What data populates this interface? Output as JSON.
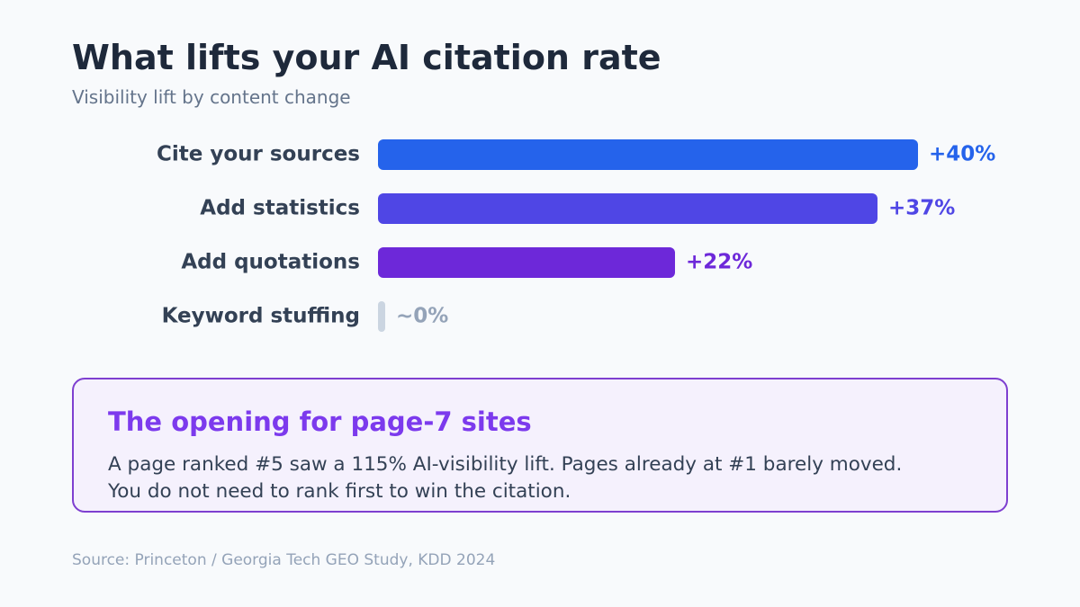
{
  "title": "What lifts your AI citation rate",
  "subtitle": "Visibility lift by content change",
  "chart_data": {
    "type": "bar",
    "orientation": "horizontal",
    "title": "What lifts your AI citation rate",
    "subtitle": "Visibility lift by content change",
    "categories": [
      "Cite your sources",
      "Add statistics",
      "Add quotations",
      "Keyword stuffing"
    ],
    "values": [
      40,
      37,
      22,
      0
    ],
    "value_labels": [
      "+40%",
      "+37%",
      "+22%",
      "~0%"
    ],
    "colors": [
      "#2563eb",
      "#4f46e5",
      "#6d28d9",
      "#cbd5e1"
    ],
    "label_colors": [
      "#2563eb",
      "#4f46e5",
      "#6d28d9",
      "#94a3b8"
    ],
    "xlim": [
      0,
      40
    ],
    "grid": false,
    "legend": "none"
  },
  "callout": {
    "title": "The opening for page-7 sites",
    "body_line1": "A page ranked #5 saw a 115% AI-visibility lift. Pages already at #1 barely moved.",
    "body_line2": "You do not need to rank first to win the citation."
  },
  "source": "Source: Princeton / Georgia Tech GEO Study, KDD 2024"
}
